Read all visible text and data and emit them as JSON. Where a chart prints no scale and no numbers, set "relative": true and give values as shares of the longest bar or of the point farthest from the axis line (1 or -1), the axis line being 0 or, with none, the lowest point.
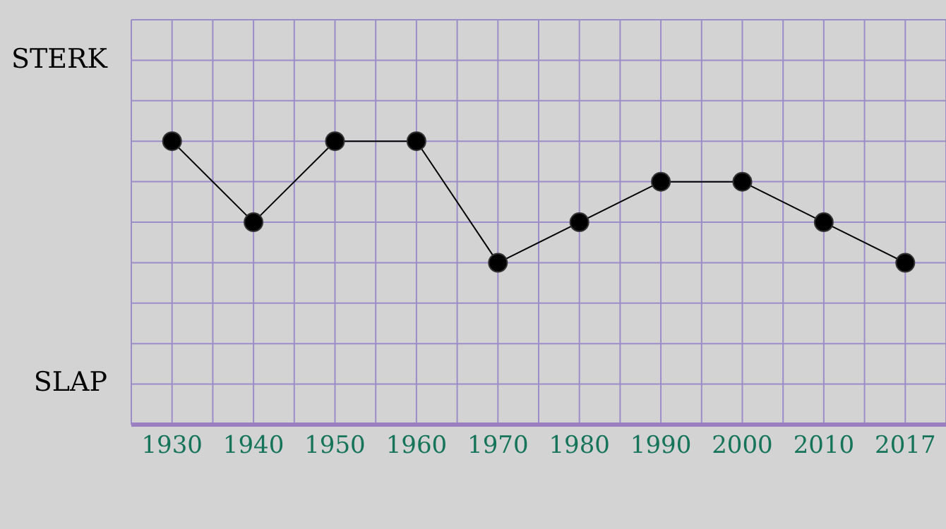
{
  "chart_data": {
    "type": "line",
    "relative": true,
    "categories": [
      "1930",
      "1940",
      "1950",
      "1960",
      "1970",
      "1980",
      "1990",
      "2000",
      "2010",
      "2017"
    ],
    "series": [
      {
        "color": "#000000",
        "values": [
          1,
          0.714,
          1,
          1,
          0.571,
          0.714,
          0.857,
          0.857,
          0.714,
          0.571
        ]
      }
    ],
    "marker": "circle",
    "line_style": "solid",
    "grid": true,
    "annotations": [
      "STERK",
      "SLAP"
    ]
  }
}
